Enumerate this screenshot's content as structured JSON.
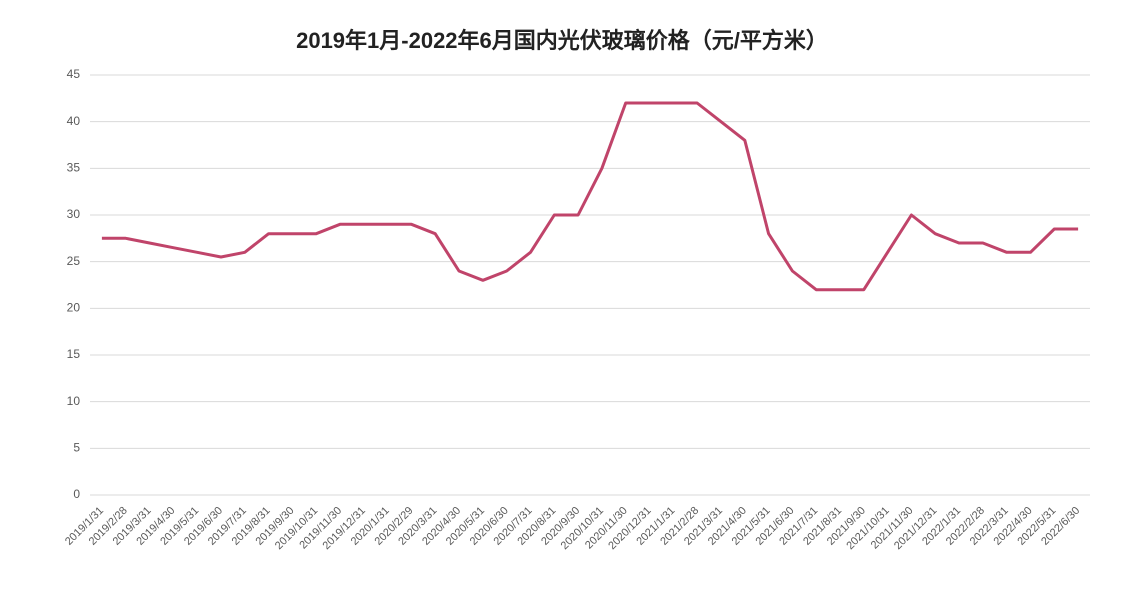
{
  "chart_data": {
    "type": "line",
    "title": "2019年1月-2022年6月国内光伏玻璃价格（元/平方米）",
    "categories": [
      "2019/1/31",
      "2019/2/28",
      "2019/3/31",
      "2019/4/30",
      "2019/5/31",
      "2019/6/30",
      "2019/7/31",
      "2019/8/31",
      "2019/9/30",
      "2019/10/31",
      "2019/11/30",
      "2019/12/31",
      "2020/1/31",
      "2020/2/29",
      "2020/3/31",
      "2020/4/30",
      "2020/5/31",
      "2020/6/30",
      "2020/7/31",
      "2020/8/31",
      "2020/9/30",
      "2020/10/31",
      "2020/11/30",
      "2020/12/31",
      "2021/1/31",
      "2021/2/28",
      "2021/3/31",
      "2021/4/30",
      "2021/5/31",
      "2021/6/30",
      "2021/7/31",
      "2021/8/31",
      "2021/9/30",
      "2021/10/31",
      "2021/11/30",
      "2021/12/31",
      "2022/1/31",
      "2022/2/28",
      "2022/3/31",
      "2022/4/30",
      "2022/5/31",
      "2022/6/30"
    ],
    "values": [
      27.5,
      27.5,
      27,
      26.5,
      26,
      25.5,
      26,
      28,
      28,
      28,
      29,
      29,
      29,
      29,
      28,
      24,
      23,
      24,
      26,
      30,
      30,
      35,
      42,
      42,
      42,
      42,
      40,
      38,
      28,
      24,
      22,
      22,
      22,
      26,
      30,
      28,
      27,
      27,
      26,
      26,
      28.5,
      28.5
    ],
    "color": "#c0446a",
    "ylim": [
      0,
      45
    ],
    "yticks": [
      0,
      5,
      10,
      15,
      20,
      25,
      30,
      35,
      40,
      45
    ],
    "grid": true
  }
}
